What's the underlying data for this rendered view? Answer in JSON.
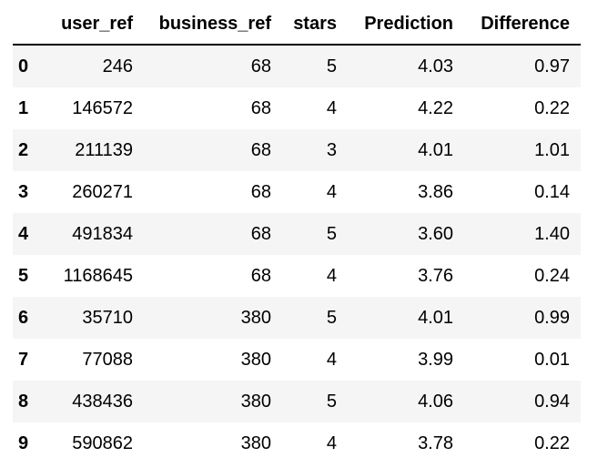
{
  "table": {
    "columns": [
      "",
      "user_ref",
      "business_ref",
      "stars",
      "Prediction",
      "Difference"
    ],
    "rows": [
      {
        "index": "0",
        "user_ref": "246",
        "business_ref": "68",
        "stars": "5",
        "Prediction": "4.03",
        "Difference": "0.97"
      },
      {
        "index": "1",
        "user_ref": "146572",
        "business_ref": "68",
        "stars": "4",
        "Prediction": "4.22",
        "Difference": "0.22"
      },
      {
        "index": "2",
        "user_ref": "211139",
        "business_ref": "68",
        "stars": "3",
        "Prediction": "4.01",
        "Difference": "1.01"
      },
      {
        "index": "3",
        "user_ref": "260271",
        "business_ref": "68",
        "stars": "4",
        "Prediction": "3.86",
        "Difference": "0.14"
      },
      {
        "index": "4",
        "user_ref": "491834",
        "business_ref": "68",
        "stars": "5",
        "Prediction": "3.60",
        "Difference": "1.40"
      },
      {
        "index": "5",
        "user_ref": "1168645",
        "business_ref": "68",
        "stars": "4",
        "Prediction": "3.76",
        "Difference": "0.24"
      },
      {
        "index": "6",
        "user_ref": "35710",
        "business_ref": "380",
        "stars": "5",
        "Prediction": "4.01",
        "Difference": "0.99"
      },
      {
        "index": "7",
        "user_ref": "77088",
        "business_ref": "380",
        "stars": "4",
        "Prediction": "3.99",
        "Difference": "0.01"
      },
      {
        "index": "8",
        "user_ref": "438436",
        "business_ref": "380",
        "stars": "5",
        "Prediction": "4.06",
        "Difference": "0.94"
      },
      {
        "index": "9",
        "user_ref": "590862",
        "business_ref": "380",
        "stars": "4",
        "Prediction": "3.78",
        "Difference": "0.22"
      }
    ]
  },
  "colors": {
    "row_stripe": "#f5f5f5",
    "header_rule": "#000000",
    "text": "#000000"
  }
}
